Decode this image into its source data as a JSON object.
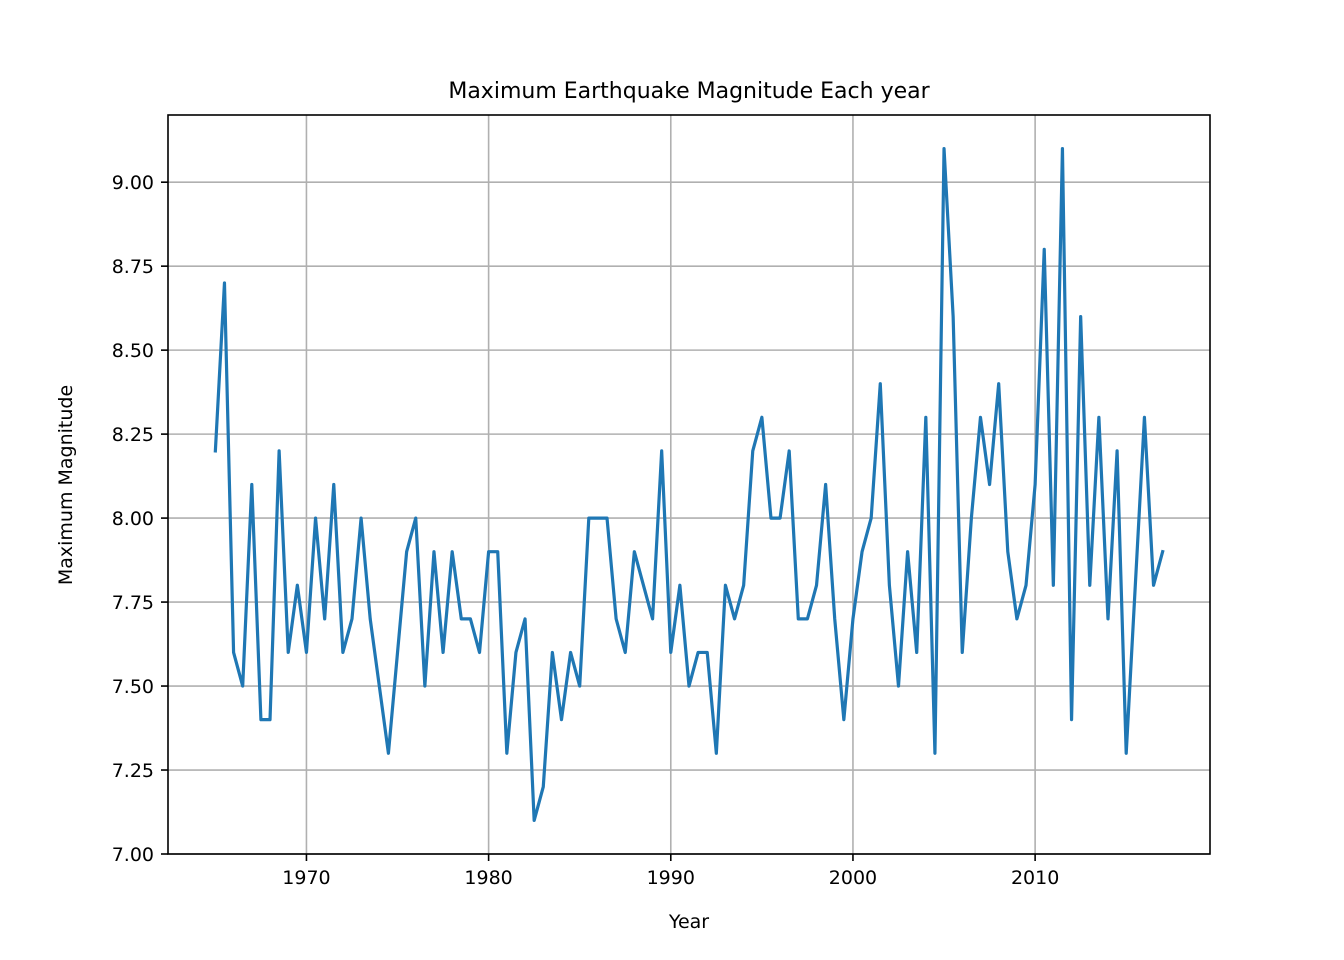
{
  "chart_data": {
    "type": "line",
    "title": "Maximum Earthquake Magnitude Each year",
    "xlabel": "Year",
    "ylabel": "Maximum Magnitude",
    "xlim": [
      1962.4,
      2019.6
    ],
    "ylim": [
      7.0,
      9.2
    ],
    "xticks": [
      1970,
      1980,
      1990,
      2000,
      2010
    ],
    "xtick_labels": [
      "1970",
      "1980",
      "1990",
      "2000",
      "2010"
    ],
    "yticks": [
      7.0,
      7.25,
      7.5,
      7.75,
      8.0,
      8.25,
      8.5,
      8.75,
      9.0
    ],
    "ytick_labels": [
      "7.00",
      "7.25",
      "7.50",
      "7.75",
      "8.00",
      "8.25",
      "8.50",
      "8.75",
      "9.00"
    ],
    "grid": true,
    "series": [
      {
        "color": "#1f77b4",
        "x": [
          1965.0,
          1965.5,
          1966.0,
          1966.5,
          1967.0,
          1967.5,
          1968.0,
          1968.5,
          1969.0,
          1969.5,
          1970.0,
          1970.5,
          1971.0,
          1971.5,
          1972.0,
          1972.5,
          1973.0,
          1973.5,
          1974.0,
          1974.5,
          1975.0,
          1975.5,
          1976.0,
          1976.5,
          1977.0,
          1977.5,
          1978.0,
          1978.5,
          1979.0,
          1979.5,
          1980.0,
          1980.5,
          1981.0,
          1981.5,
          1982.0,
          1982.5,
          1983.0,
          1983.5,
          1984.0,
          1984.5,
          1985.0,
          1985.5,
          1986.0,
          1986.5,
          1987.0,
          1987.5,
          1988.0,
          1988.5,
          1989.0,
          1989.5,
          1990.0,
          1990.5,
          1991.0,
          1991.5,
          1992.0,
          1992.5,
          1993.0,
          1993.5,
          1994.0,
          1994.5,
          1995.0,
          1995.5,
          1996.0,
          1996.5,
          1997.0,
          1997.5,
          1998.0,
          1998.5,
          1999.0,
          1999.5,
          2000.0,
          2000.5,
          2001.0,
          2001.5,
          2002.0,
          2002.5,
          2003.0,
          2003.5,
          2004.0,
          2004.5,
          2005.0,
          2005.5,
          2006.0,
          2006.5,
          2007.0,
          2007.5,
          2008.0,
          2008.5,
          2009.0,
          2009.5,
          2010.0,
          2010.5,
          2011.0,
          2011.5,
          2012.0,
          2012.5,
          2013.0,
          2013.5,
          2014.0,
          2014.5,
          2015.0,
          2015.5,
          2016.0,
          2016.5,
          2017.0
        ],
        "y": [
          8.2,
          8.7,
          7.6,
          7.5,
          8.1,
          7.4,
          7.4,
          8.2,
          7.6,
          7.8,
          7.6,
          8.0,
          7.7,
          8.1,
          7.6,
          7.7,
          8.0,
          7.7,
          7.5,
          7.3,
          7.6,
          7.9,
          8.0,
          7.5,
          7.9,
          7.6,
          7.9,
          7.7,
          7.7,
          7.6,
          7.9,
          7.9,
          7.3,
          7.6,
          7.7,
          7.1,
          7.2,
          7.6,
          7.4,
          7.6,
          7.5,
          8.0,
          8.0,
          8.0,
          7.7,
          7.6,
          7.9,
          7.8,
          7.7,
          8.2,
          7.6,
          7.8,
          7.5,
          7.6,
          7.6,
          7.3,
          7.8,
          7.7,
          7.8,
          8.2,
          8.3,
          8.0,
          8.0,
          8.2,
          7.7,
          7.7,
          7.8,
          8.1,
          7.7,
          7.4,
          7.7,
          7.9,
          8.0,
          8.4,
          7.8,
          7.5,
          7.9,
          7.6,
          8.3,
          7.3,
          9.1,
          8.6,
          7.6,
          8.0,
          8.3,
          8.1,
          8.4,
          7.9,
          7.7,
          7.8,
          8.1,
          8.8,
          7.8,
          9.1,
          7.4,
          8.6,
          7.8,
          8.3,
          7.7,
          8.2,
          7.3,
          7.8,
          8.3,
          7.8,
          7.9
        ]
      }
    ]
  }
}
